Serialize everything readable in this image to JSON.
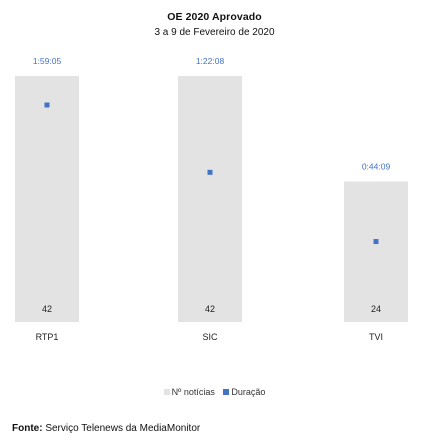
{
  "chart_data": {
    "type": "bar",
    "title": "OE 2020 Aprovado",
    "subtitle": "3 a 9 de Fevereiro de 2020",
    "categories": [
      "RTP1",
      "SIC",
      "TVI"
    ],
    "series": [
      {
        "name": "Nº notícias",
        "axis": "primary",
        "marker": "bar",
        "values": [
          42,
          42,
          24
        ],
        "labels": [
          "42",
          "42",
          "24"
        ]
      },
      {
        "name": "Duração",
        "axis": "secondary",
        "marker": "square",
        "values_seconds": [
          7145,
          4928,
          2649
        ],
        "labels": [
          "1:59:05",
          "1:22:08",
          "0:44:09"
        ]
      }
    ],
    "ylim": [
      0,
      42
    ],
    "y2lim": [
      0,
      8100
    ],
    "legend": "bottom",
    "grid": false,
    "colors": {
      "bars": "#e3e3e3",
      "markers": "#4472c4",
      "duration_labels": "#4472c4"
    }
  },
  "source": {
    "label": "Fonte:",
    "text": " Serviço Telenews da MediaMonitor"
  }
}
